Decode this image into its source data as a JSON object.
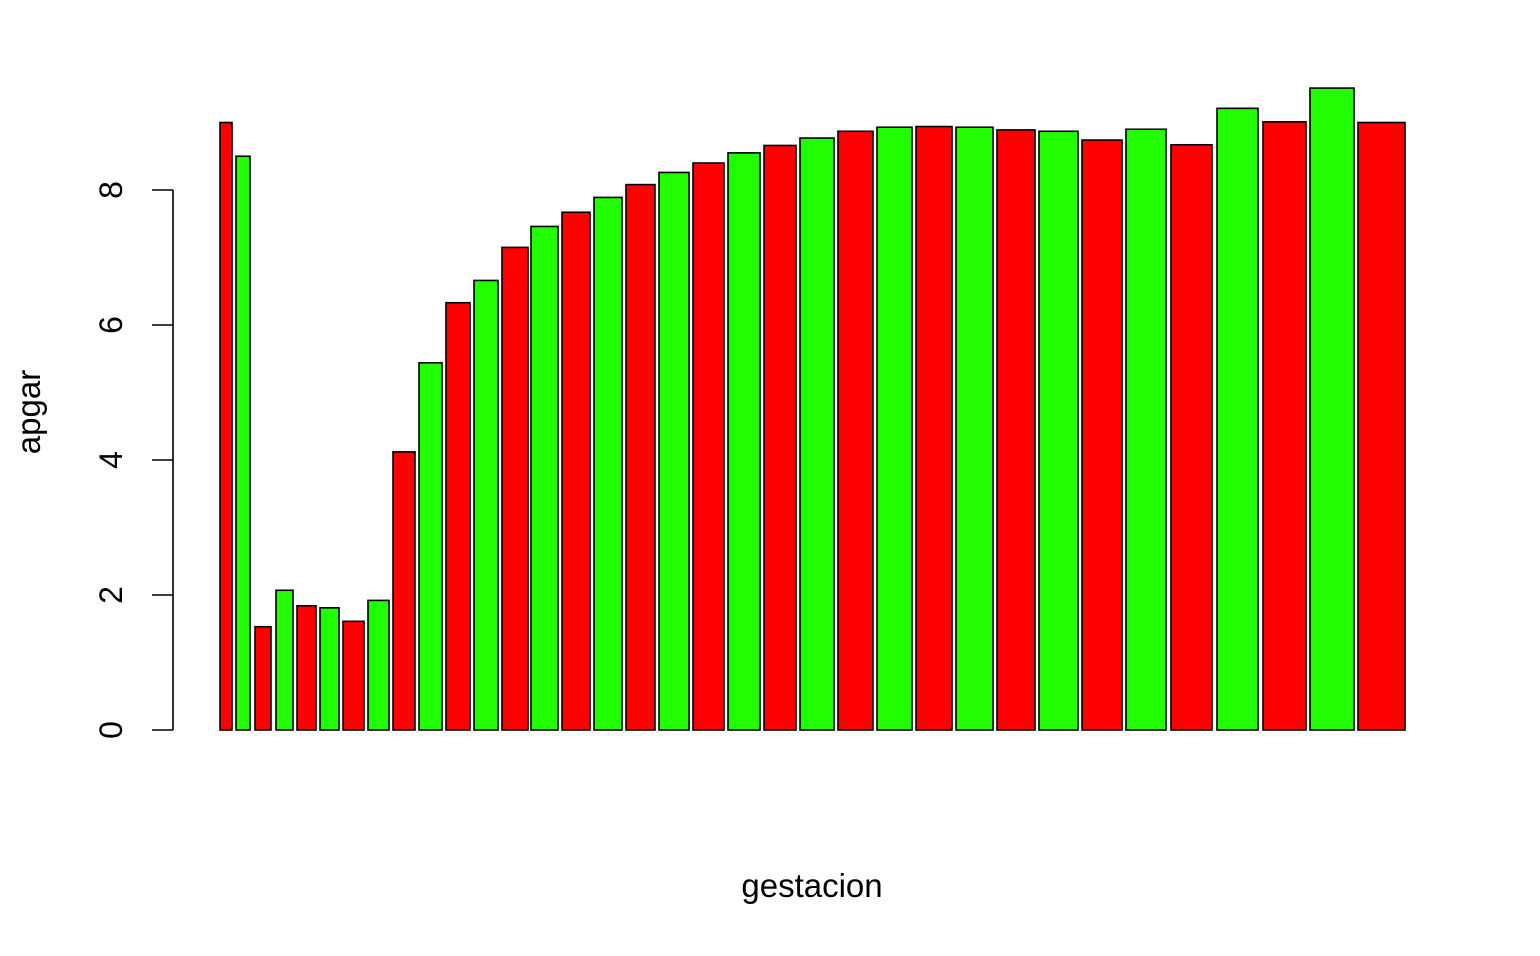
{
  "chart_data": {
    "type": "bar",
    "xlabel": "gestacion",
    "ylabel": "apgar",
    "ylim": [
      0,
      10
    ],
    "yticks": [
      0,
      2,
      4,
      6,
      8
    ],
    "grid": false,
    "values": [
      9.0,
      8.5,
      1.53,
      2.07,
      1.84,
      1.81,
      1.61,
      1.92,
      4.12,
      5.44,
      6.33,
      6.66,
      7.15,
      7.46,
      7.67,
      7.89,
      8.08,
      8.26,
      8.4,
      8.55,
      8.66,
      8.77,
      8.87,
      8.93,
      8.94,
      8.93,
      8.89,
      8.87,
      8.74,
      8.9,
      8.67,
      9.21,
      9.01,
      9.51,
      9.0
    ],
    "bar_colors": [
      "#ff0000",
      "#22ff00"
    ]
  }
}
